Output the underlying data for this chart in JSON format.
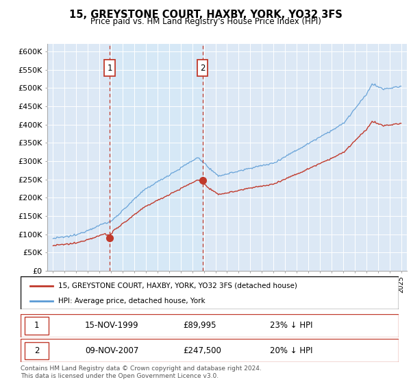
{
  "title": "15, GREYSTONE COURT, HAXBY, YORK, YO32 3FS",
  "subtitle": "Price paid vs. HM Land Registry's House Price Index (HPI)",
  "hpi_color": "#5b9bd5",
  "price_color": "#c0392b",
  "vline_color": "#c0392b",
  "shade_color": "#d6e8f7",
  "bg_fill": "#dce8f5",
  "transaction1_price": 89995,
  "transaction1_date": "15-NOV-1999",
  "transaction1_hpi_diff": "23% ↓ HPI",
  "transaction2_price": 247500,
  "transaction2_date": "09-NOV-2007",
  "transaction2_hpi_diff": "20% ↓ HPI",
  "legend_label1": "15, GREYSTONE COURT, HAXBY, YORK, YO32 3FS (detached house)",
  "legend_label2": "HPI: Average price, detached house, York",
  "footer": "Contains HM Land Registry data © Crown copyright and database right 2024.\nThis data is licensed under the Open Government Licence v3.0.",
  "ylim_min": 0,
  "ylim_max": 620000,
  "yticks": [
    0,
    50000,
    100000,
    150000,
    200000,
    250000,
    300000,
    350000,
    400000,
    450000,
    500000,
    550000,
    600000
  ],
  "ytick_labels": [
    "£0",
    "£50K",
    "£100K",
    "£150K",
    "£200K",
    "£250K",
    "£300K",
    "£350K",
    "£400K",
    "£450K",
    "£500K",
    "£550K",
    "£600K"
  ],
  "t1_year": 1999.875,
  "t2_year": 2007.875
}
